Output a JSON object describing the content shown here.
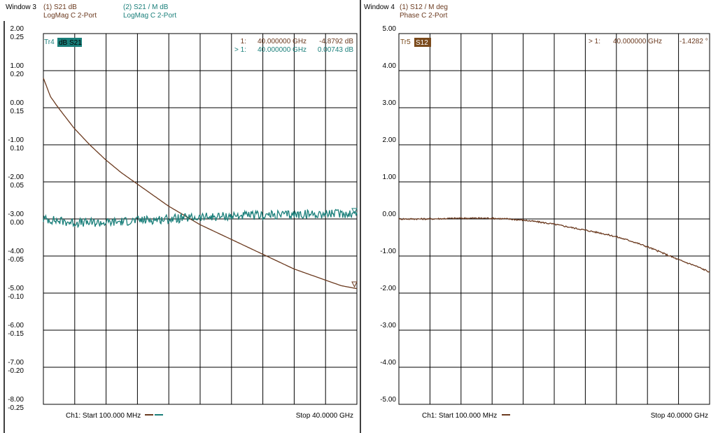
{
  "colors": {
    "background": "#ffffff",
    "grid": "#000000",
    "trace_s21_db": "#6b3a1f",
    "trace_s21_mdb": "#1a7f7a",
    "trace_s12": "#6b3a1f",
    "tr4_badge": "#1a7f7a",
    "tr5_badge": "#7a4a1c"
  },
  "windows": [
    {
      "title": "Window 3",
      "trace_header_1": "(1) S21 dB",
      "trace_header_1_sub": "LogMag C  2-Port",
      "trace_header_2": "(2) S21 / M  dB",
      "trace_header_2_sub": "LogMag C  2-Port",
      "badge_prefix": "Tr4",
      "badge_label": "dB S21",
      "marker_lines": [
        {
          "name": "1:",
          "freq": "40.000000 GHz",
          "value": "-4.8792 dB"
        },
        {
          "name": "> 1:",
          "freq": "40.000000 GHz",
          "value": "0.00743 dB"
        }
      ],
      "footer_start": "Ch1: Start  100.000 MHz",
      "footer_stop": "Stop  40.0000 GHz"
    },
    {
      "title": "Window 4",
      "trace_header_1": "(1) S12 / M  deg",
      "trace_header_1_sub": "Phase C  2-Port",
      "badge_prefix": "Tr5",
      "badge_label": "S12",
      "marker_lines": [
        {
          "name": "> 1:",
          "freq": "40.000000 GHz",
          "value": "-1.4282 °"
        }
      ],
      "footer_start": "Ch1: Start  100.000 MHz",
      "footer_stop": "Stop  40.0000 GHz"
    }
  ],
  "chart_data": [
    {
      "type": "line",
      "x_unit": "GHz",
      "xlim": [
        0.1,
        40.0
      ],
      "grid": true,
      "y_axes": [
        {
          "ticks": [
            "2.00",
            "1.00",
            "0.00",
            "-1.00",
            "-2.00",
            "-3.00",
            "-4.00",
            "-5.00",
            "-6.00",
            "-7.00",
            "-8.00"
          ],
          "ylim": [
            -8.0,
            2.0
          ]
        },
        {
          "ticks": [
            "0.25",
            "0.20",
            "0.15",
            "0.10",
            "0.05",
            "0.00",
            "-0.05",
            "-0.10",
            "-0.15",
            "-0.20",
            "-0.25"
          ],
          "ylim": [
            -0.25,
            0.25
          ]
        }
      ],
      "series": [
        {
          "name": "(1) S21 dB",
          "axis": 0,
          "x": [
            0.1,
            1,
            2,
            4,
            6,
            8,
            10,
            12,
            14,
            16,
            18,
            20,
            22,
            24,
            26,
            28,
            30,
            32,
            34,
            36,
            38,
            40
          ],
          "y": [
            0.8,
            0.3,
            0.0,
            -0.55,
            -1.0,
            -1.4,
            -1.75,
            -2.05,
            -2.35,
            -2.65,
            -2.9,
            -3.15,
            -3.35,
            -3.55,
            -3.75,
            -3.95,
            -4.15,
            -4.35,
            -4.5,
            -4.65,
            -4.8,
            -4.88
          ]
        },
        {
          "name": "(2) S21 / M  dB",
          "axis": 1,
          "x": [
            0.1,
            4,
            8,
            12,
            16,
            20,
            24,
            28,
            32,
            36,
            40
          ],
          "y": [
            0.0,
            -0.005,
            -0.005,
            -0.002,
            0.0,
            0.002,
            0.004,
            0.005,
            0.006,
            0.007,
            0.0074
          ],
          "noise": 0.006
        }
      ]
    },
    {
      "type": "line",
      "x_unit": "GHz",
      "xlim": [
        0.1,
        40.0
      ],
      "grid": true,
      "y_axes": [
        {
          "ticks": [
            "5.00",
            "4.00",
            "3.00",
            "2.00",
            "1.00",
            "0.00",
            "-1.00",
            "-2.00",
            "-3.00",
            "-4.00",
            "-5.00"
          ],
          "ylim": [
            -5.0,
            5.0
          ]
        }
      ],
      "series": [
        {
          "name": "(1) S12 / M  deg",
          "axis": 0,
          "x": [
            0.1,
            4,
            8,
            12,
            14,
            16,
            18,
            20,
            22,
            24,
            26,
            28,
            30,
            32,
            34,
            36,
            38,
            40
          ],
          "y": [
            0.0,
            0.0,
            0.02,
            0.02,
            0.0,
            -0.03,
            -0.08,
            -0.14,
            -0.22,
            -0.3,
            -0.38,
            -0.48,
            -0.6,
            -0.75,
            -0.92,
            -1.1,
            -1.25,
            -1.43
          ],
          "noise": 0.02
        }
      ]
    }
  ]
}
